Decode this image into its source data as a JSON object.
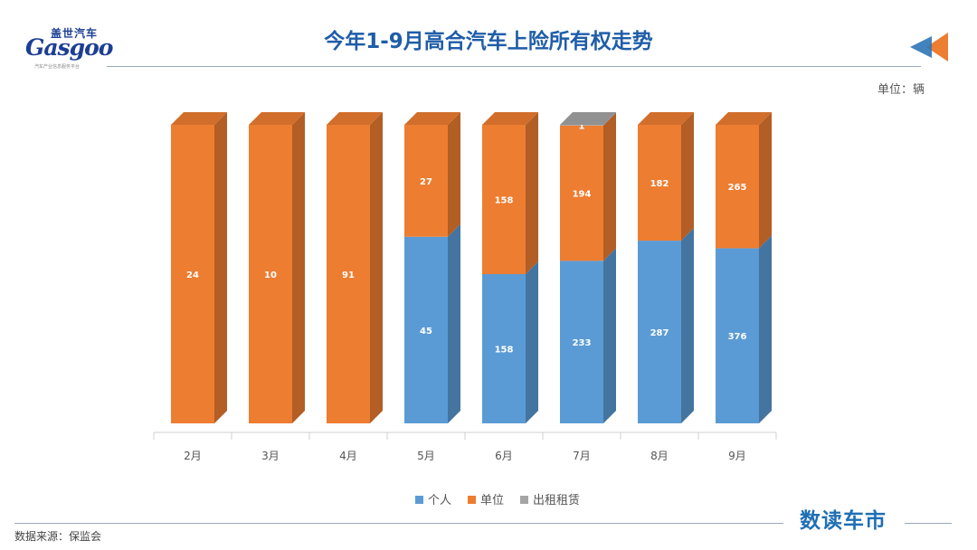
{
  "header": {
    "title": "今年1-9月高合汽车上险所有权走势",
    "unit": "单位：辆"
  },
  "logo": {
    "cn": "盖世汽车",
    "en": "Gasgoo",
    "sub": "汽车产业信息服务平台"
  },
  "footer": {
    "source": "数据来源：保监会",
    "brand": "数读车市"
  },
  "colors": {
    "personal": "#5b9bd5",
    "company": "#ed7d31",
    "rental": "#a5a5a5",
    "title": "#1f5da8"
  },
  "chart_data": {
    "type": "bar",
    "stacked": true,
    "title": "今年1-9月高合汽车上险所有权走势",
    "categories": [
      "2月",
      "3月",
      "4月",
      "5月",
      "6月",
      "7月",
      "8月",
      "9月"
    ],
    "series": [
      {
        "name": "个人",
        "values": [
          0,
          0,
          0,
          45,
          158,
          233,
          287,
          376
        ]
      },
      {
        "name": "单位",
        "values": [
          24,
          10,
          91,
          27,
          158,
          194,
          182,
          265
        ]
      },
      {
        "name": "出租租赁",
        "values": [
          0,
          0,
          0,
          0,
          0,
          1,
          0,
          0
        ]
      }
    ],
    "value_labels": [
      {
        "category": "2月",
        "personal": "",
        "company": "24",
        "rental": ""
      },
      {
        "category": "3月",
        "personal": "",
        "company": "10",
        "rental": ""
      },
      {
        "category": "4月",
        "personal": "",
        "company": "91",
        "rental": ""
      },
      {
        "category": "5月",
        "personal": "45",
        "company": "27",
        "rental": ""
      },
      {
        "category": "6月",
        "personal": "158",
        "company": "158",
        "rental": ""
      },
      {
        "category": "7月",
        "personal": "233",
        "company": "194",
        "rental": "1"
      },
      {
        "category": "8月",
        "personal": "287",
        "company": "182",
        "rental": ""
      },
      {
        "category": "9月",
        "personal": "376",
        "company": "265",
        "rental": ""
      }
    ],
    "legend_position": "bottom",
    "grid": false,
    "stacking": "percent"
  }
}
